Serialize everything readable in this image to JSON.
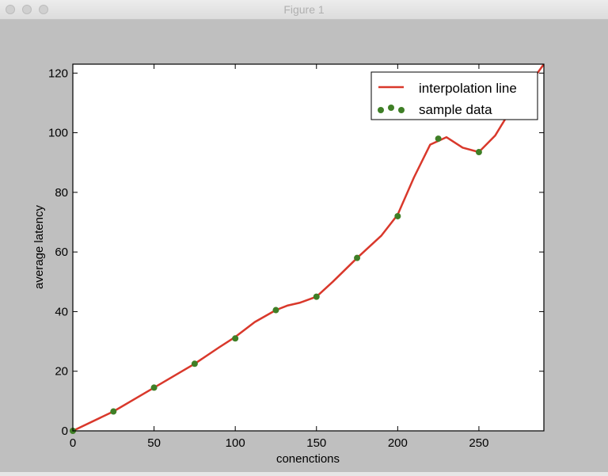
{
  "window": {
    "title": "Figure 1"
  },
  "chart_data": {
    "type": "line",
    "title": "",
    "xlabel": "conenctions",
    "ylabel": "average latency",
    "xlim": [
      0,
      290
    ],
    "ylim": [
      0,
      123
    ],
    "xticks": [
      0,
      50,
      100,
      150,
      200,
      250
    ],
    "yticks": [
      0,
      20,
      40,
      60,
      80,
      100,
      120
    ],
    "grid": false,
    "legend_position": "top-right",
    "series": [
      {
        "name": "interpolation line",
        "kind": "line",
        "color": "#d9382b",
        "x": [
          0,
          25,
          50,
          75,
          90,
          100,
          112,
          125,
          132,
          140,
          150,
          160,
          175,
          190,
          200,
          210,
          220,
          230,
          240,
          250,
          260,
          270,
          290
        ],
        "y": [
          0,
          6.5,
          14.5,
          22.5,
          28,
          31.5,
          36.5,
          40.5,
          42,
          43,
          45,
          50,
          58,
          65.5,
          72.5,
          85,
          96,
          98.5,
          95,
          93.5,
          99,
          108,
          123
        ]
      },
      {
        "name": "sample data",
        "kind": "scatter",
        "color": "#3f7f26",
        "x": [
          0,
          25,
          50,
          75,
          100,
          125,
          150,
          175,
          200,
          225,
          250
        ],
        "y": [
          0,
          6.5,
          14.5,
          22.5,
          31,
          40.5,
          45,
          58,
          72,
          98,
          93.5
        ]
      }
    ]
  }
}
